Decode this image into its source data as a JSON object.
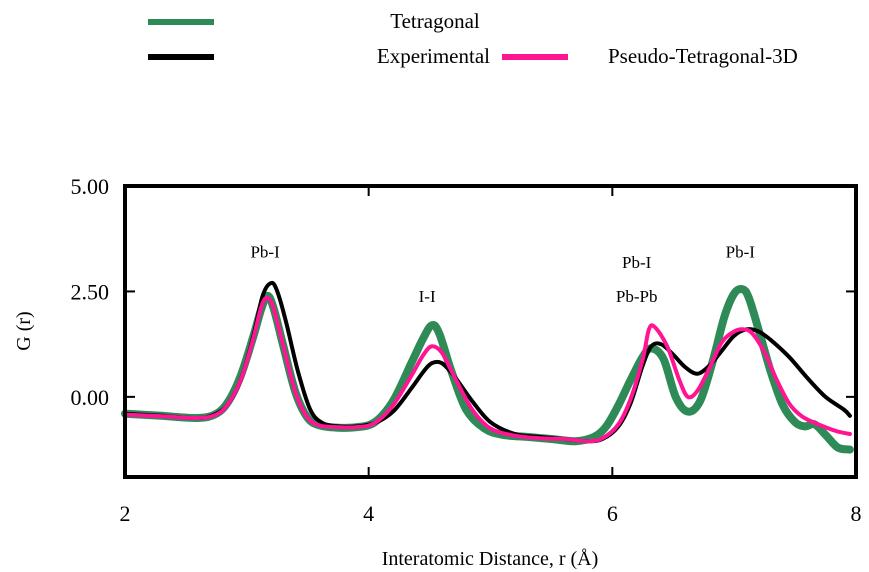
{
  "chart_data": {
    "type": "line",
    "title": "",
    "xlabel": "Interatomic Distance, r (Å)",
    "ylabel": "G (r)",
    "xlim": [
      2,
      8
    ],
    "ylim": [
      -1.9,
      5.0
    ],
    "xticks": [
      2,
      4,
      6,
      8
    ],
    "xtick_labels": [
      "2",
      "4",
      "6",
      "8"
    ],
    "yticks": [
      0.0,
      2.5,
      5.0
    ],
    "ytick_labels": [
      "0.00",
      "2.50",
      "5.00"
    ],
    "legend": {
      "placement": "top"
    },
    "series": [
      {
        "name": "Tetragonal",
        "color": "#2e8b57",
        "x": [
          2.0,
          2.3,
          2.6,
          2.75,
          2.85,
          2.95,
          3.05,
          3.12,
          3.17,
          3.22,
          3.3,
          3.4,
          3.5,
          3.6,
          3.75,
          3.9,
          4.05,
          4.2,
          4.35,
          4.45,
          4.52,
          4.58,
          4.68,
          4.8,
          4.95,
          5.1,
          5.3,
          5.5,
          5.7,
          5.85,
          5.95,
          6.05,
          6.15,
          6.25,
          6.32,
          6.42,
          6.52,
          6.62,
          6.72,
          6.82,
          6.92,
          7.0,
          7.07,
          7.12,
          7.2,
          7.3,
          7.4,
          7.5,
          7.58,
          7.66,
          7.75,
          7.85,
          7.95
        ],
        "y": [
          -0.4,
          -0.45,
          -0.5,
          -0.4,
          -0.1,
          0.5,
          1.4,
          2.1,
          2.4,
          2.1,
          1.2,
          0.1,
          -0.5,
          -0.68,
          -0.73,
          -0.72,
          -0.6,
          -0.1,
          0.8,
          1.4,
          1.7,
          1.5,
          0.6,
          -0.3,
          -0.75,
          -0.9,
          -0.95,
          -1.0,
          -1.05,
          -0.95,
          -0.7,
          -0.2,
          0.4,
          0.95,
          1.15,
          0.9,
          0.0,
          -0.35,
          -0.1,
          0.8,
          1.9,
          2.45,
          2.55,
          2.35,
          1.6,
          0.6,
          -0.2,
          -0.6,
          -0.7,
          -0.65,
          -0.9,
          -1.2,
          -1.25
        ]
      },
      {
        "name": "Experimental",
        "color": "#000000",
        "x": [
          2.0,
          2.3,
          2.6,
          2.75,
          2.85,
          2.95,
          3.05,
          3.13,
          3.2,
          3.25,
          3.32,
          3.42,
          3.52,
          3.62,
          3.75,
          3.9,
          4.05,
          4.2,
          4.35,
          4.45,
          4.52,
          4.6,
          4.7,
          4.85,
          5.0,
          5.2,
          5.4,
          5.6,
          5.8,
          5.92,
          6.05,
          6.15,
          6.25,
          6.32,
          6.4,
          6.5,
          6.6,
          6.7,
          6.8,
          6.9,
          7.0,
          7.1,
          7.2,
          7.3,
          7.45,
          7.6,
          7.75,
          7.9,
          7.95
        ],
        "y": [
          -0.4,
          -0.45,
          -0.5,
          -0.4,
          -0.15,
          0.4,
          1.4,
          2.4,
          2.7,
          2.5,
          1.8,
          0.6,
          -0.3,
          -0.62,
          -0.7,
          -0.7,
          -0.62,
          -0.35,
          0.2,
          0.6,
          0.8,
          0.8,
          0.5,
          -0.1,
          -0.6,
          -0.88,
          -0.95,
          -1.0,
          -1.05,
          -1.0,
          -0.7,
          -0.15,
          0.75,
          1.2,
          1.25,
          1.0,
          0.7,
          0.55,
          0.75,
          1.1,
          1.45,
          1.6,
          1.55,
          1.35,
          0.95,
          0.45,
          0.0,
          -0.3,
          -0.45
        ]
      },
      {
        "name": "Pseudo-Tetragonal-3D",
        "color": "#ff1493",
        "x": [
          2.0,
          2.3,
          2.6,
          2.75,
          2.85,
          2.95,
          3.05,
          3.12,
          3.17,
          3.22,
          3.3,
          3.4,
          3.5,
          3.6,
          3.75,
          3.9,
          4.05,
          4.2,
          4.35,
          4.45,
          4.52,
          4.6,
          4.7,
          4.85,
          5.0,
          5.2,
          5.4,
          5.6,
          5.8,
          5.92,
          6.05,
          6.15,
          6.25,
          6.3,
          6.35,
          6.45,
          6.55,
          6.62,
          6.7,
          6.8,
          6.9,
          7.0,
          7.08,
          7.15,
          7.25,
          7.35,
          7.45,
          7.55,
          7.65,
          7.75,
          7.85,
          7.95
        ],
        "y": [
          -0.42,
          -0.46,
          -0.5,
          -0.42,
          -0.15,
          0.4,
          1.35,
          2.15,
          2.35,
          2.1,
          1.2,
          0.1,
          -0.5,
          -0.68,
          -0.72,
          -0.72,
          -0.62,
          -0.2,
          0.5,
          1.0,
          1.2,
          1.05,
          0.5,
          -0.3,
          -0.75,
          -0.92,
          -0.98,
          -1.0,
          -1.05,
          -0.98,
          -0.65,
          -0.05,
          0.9,
          1.6,
          1.65,
          1.2,
          0.4,
          0.0,
          0.15,
          0.7,
          1.3,
          1.55,
          1.6,
          1.5,
          1.05,
          0.4,
          -0.15,
          -0.45,
          -0.6,
          -0.72,
          -0.82,
          -0.88
        ]
      }
    ],
    "annotations": [
      {
        "text": "Pb-I",
        "x": 3.15,
        "y": 3.3
      },
      {
        "text": "I-I",
        "x": 4.48,
        "y": 2.25
      },
      {
        "text": "Pb-I",
        "x": 6.2,
        "y": 3.05
      },
      {
        "text": "Pb-Pb",
        "x": 6.2,
        "y": 2.25
      },
      {
        "text": "Pb-I",
        "x": 7.05,
        "y": 3.3
      }
    ]
  }
}
